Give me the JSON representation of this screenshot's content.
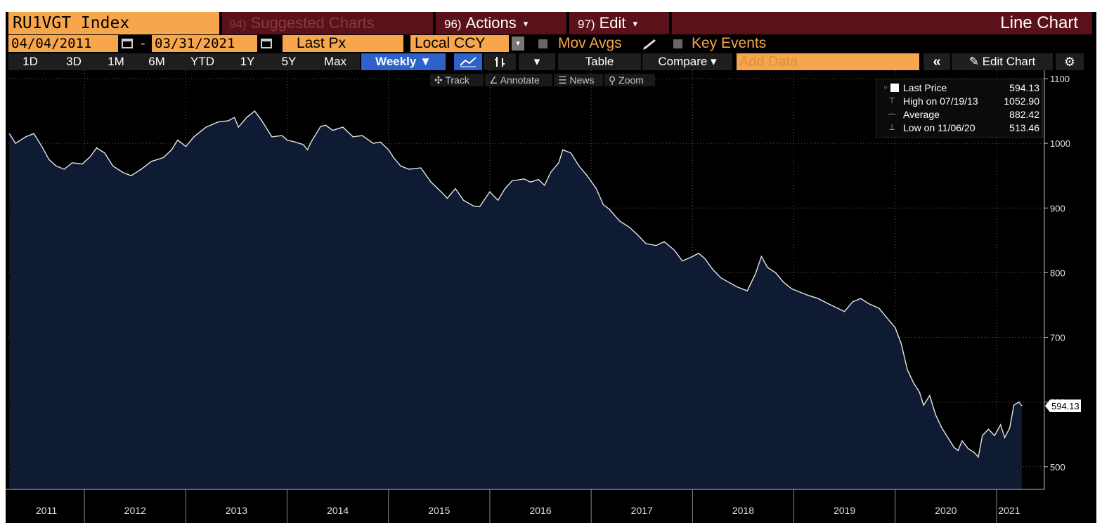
{
  "toolbar": {
    "ticker": "RU1VGT Index",
    "suggested_num": "94)",
    "suggested_label": "Suggested Charts",
    "actions_num": "96)",
    "actions_label": "Actions",
    "edit_num": "97)",
    "edit_label": "Edit",
    "chart_title": "Line Chart",
    "start_date": "04/04/2011",
    "date_dash": "-",
    "end_date": "03/31/2021",
    "price_field": "Last Px",
    "currency": "Local CCY",
    "mov_avgs": "Mov Avgs",
    "key_events": "Key Events",
    "periods": [
      "1D",
      "3D",
      "1M",
      "6M",
      "YTD",
      "1Y",
      "5Y",
      "Max"
    ],
    "frequency": "Weekly",
    "table": "Table",
    "compare": "Compare",
    "add_data_placeholder": "Add Data",
    "edit_chart": "Edit Chart",
    "sub_tools": [
      "Track",
      "Annotate",
      "News",
      "Zoom"
    ]
  },
  "legend": {
    "last_price_label": "Last Price",
    "last_price_value": "594.13",
    "high_label": "High on 07/19/13",
    "high_value": "1052.90",
    "average_label": "Average",
    "average_value": "882.42",
    "low_label": "Low on 11/06/20",
    "low_value": "513.46"
  },
  "colors": {
    "accent_orange": "#f7a64c",
    "title_bar": "#5a1119",
    "active_blue": "#2f62c8",
    "area_fill": "#0f1b33",
    "line": "#e6e6e6"
  },
  "chart_data": {
    "type": "area",
    "x_axis_labels": [
      "2011",
      "2012",
      "2013",
      "2014",
      "2015",
      "2016",
      "2017",
      "2018",
      "2019",
      "2020",
      "2021"
    ],
    "x_range": [
      2011.25,
      2021.25
    ],
    "y_ticks": [
      500,
      600,
      700,
      800,
      900,
      1000,
      1100
    ],
    "ylim": [
      465,
      1100
    ],
    "last_value_label": "594.13",
    "grid": true,
    "legend_position": "top-right",
    "points": [
      [
        2011.26,
        1015
      ],
      [
        2011.32,
        1000
      ],
      [
        2011.42,
        1010
      ],
      [
        2011.5,
        1015
      ],
      [
        2011.58,
        995
      ],
      [
        2011.65,
        975
      ],
      [
        2011.72,
        965
      ],
      [
        2011.8,
        960
      ],
      [
        2011.88,
        970
      ],
      [
        2011.98,
        968
      ],
      [
        2012.06,
        980
      ],
      [
        2012.12,
        993
      ],
      [
        2012.2,
        985
      ],
      [
        2012.28,
        965
      ],
      [
        2012.38,
        955
      ],
      [
        2012.46,
        950
      ],
      [
        2012.56,
        960
      ],
      [
        2012.66,
        972
      ],
      [
        2012.78,
        978
      ],
      [
        2012.86,
        990
      ],
      [
        2012.92,
        1005
      ],
      [
        2013.0,
        995
      ],
      [
        2013.08,
        1010
      ],
      [
        2013.2,
        1025
      ],
      [
        2013.32,
        1033
      ],
      [
        2013.42,
        1035
      ],
      [
        2013.48,
        1040
      ],
      [
        2013.52,
        1025
      ],
      [
        2013.6,
        1040
      ],
      [
        2013.68,
        1050
      ],
      [
        2013.75,
        1035
      ],
      [
        2013.85,
        1010
      ],
      [
        2013.95,
        1012
      ],
      [
        2014.0,
        1005
      ],
      [
        2014.08,
        1002
      ],
      [
        2014.16,
        998
      ],
      [
        2014.2,
        990
      ],
      [
        2014.24,
        1003
      ],
      [
        2014.33,
        1026
      ],
      [
        2014.38,
        1028
      ],
      [
        2014.45,
        1020
      ],
      [
        2014.55,
        1025
      ],
      [
        2014.65,
        1010
      ],
      [
        2014.74,
        1012
      ],
      [
        2014.85,
        1000
      ],
      [
        2014.92,
        1002
      ],
      [
        2015.0,
        990
      ],
      [
        2015.05,
        978
      ],
      [
        2015.12,
        965
      ],
      [
        2015.2,
        960
      ],
      [
        2015.32,
        962
      ],
      [
        2015.42,
        940
      ],
      [
        2015.52,
        925
      ],
      [
        2015.58,
        915
      ],
      [
        2015.66,
        930
      ],
      [
        2015.74,
        912
      ],
      [
        2015.84,
        903
      ],
      [
        2015.9,
        902
      ],
      [
        2016.0,
        925
      ],
      [
        2016.08,
        912
      ],
      [
        2016.15,
        930
      ],
      [
        2016.22,
        942
      ],
      [
        2016.34,
        945
      ],
      [
        2016.4,
        940
      ],
      [
        2016.48,
        944
      ],
      [
        2016.54,
        935
      ],
      [
        2016.6,
        955
      ],
      [
        2016.68,
        970
      ],
      [
        2016.72,
        990
      ],
      [
        2016.8,
        985
      ],
      [
        2016.88,
        965
      ],
      [
        2016.96,
        950
      ],
      [
        2017.05,
        930
      ],
      [
        2017.12,
        905
      ],
      [
        2017.18,
        898
      ],
      [
        2017.28,
        880
      ],
      [
        2017.38,
        870
      ],
      [
        2017.46,
        858
      ],
      [
        2017.54,
        845
      ],
      [
        2017.64,
        842
      ],
      [
        2017.72,
        848
      ],
      [
        2017.82,
        835
      ],
      [
        2017.9,
        818
      ],
      [
        2018.0,
        825
      ],
      [
        2018.06,
        830
      ],
      [
        2018.12,
        822
      ],
      [
        2018.2,
        805
      ],
      [
        2018.28,
        792
      ],
      [
        2018.36,
        785
      ],
      [
        2018.44,
        778
      ],
      [
        2018.54,
        772
      ],
      [
        2018.62,
        798
      ],
      [
        2018.68,
        825
      ],
      [
        2018.74,
        808
      ],
      [
        2018.82,
        800
      ],
      [
        2018.9,
        785
      ],
      [
        2018.98,
        775
      ],
      [
        2019.06,
        770
      ],
      [
        2019.14,
        765
      ],
      [
        2019.24,
        760
      ],
      [
        2019.34,
        752
      ],
      [
        2019.42,
        746
      ],
      [
        2019.5,
        740
      ],
      [
        2019.58,
        755
      ],
      [
        2019.66,
        760
      ],
      [
        2019.74,
        752
      ],
      [
        2019.84,
        745
      ],
      [
        2019.92,
        730
      ],
      [
        2020.0,
        715
      ],
      [
        2020.06,
        690
      ],
      [
        2020.12,
        650
      ],
      [
        2020.18,
        630
      ],
      [
        2020.24,
        615
      ],
      [
        2020.28,
        595
      ],
      [
        2020.34,
        610
      ],
      [
        2020.4,
        580
      ],
      [
        2020.46,
        560
      ],
      [
        2020.52,
        545
      ],
      [
        2020.58,
        530
      ],
      [
        2020.62,
        525
      ],
      [
        2020.66,
        540
      ],
      [
        2020.72,
        528
      ],
      [
        2020.78,
        522
      ],
      [
        2020.82,
        515
      ],
      [
        2020.86,
        548
      ],
      [
        2020.92,
        558
      ],
      [
        2020.98,
        548
      ],
      [
        2021.04,
        565
      ],
      [
        2021.08,
        545
      ],
      [
        2021.13,
        560
      ],
      [
        2021.17,
        595
      ],
      [
        2021.22,
        600
      ],
      [
        2021.25,
        594.13
      ]
    ]
  }
}
